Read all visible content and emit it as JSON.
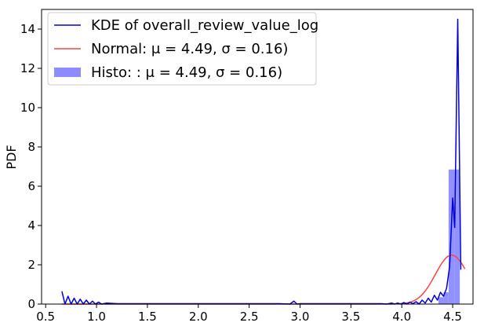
{
  "chart_data": {
    "type": "line",
    "title": "",
    "xlabel": "",
    "ylabel": "PDF",
    "xlim": [
      0.46,
      4.7
    ],
    "ylim": [
      0,
      15
    ],
    "x_ticks": [
      0.5,
      1.0,
      1.5,
      2.0,
      2.5,
      3.0,
      3.5,
      4.0,
      4.5
    ],
    "x_tick_labels": [
      "0.5",
      "1.0",
      "1.5",
      "2.0",
      "2.5",
      "3.0",
      "3.5",
      "4.0",
      "4.5"
    ],
    "y_ticks": [
      0,
      2,
      4,
      6,
      8,
      10,
      12,
      14
    ],
    "y_tick_labels": [
      "0",
      "2",
      "4",
      "6",
      "8",
      "10",
      "12",
      "14"
    ],
    "grid": false,
    "legend_position": "top-left",
    "legend": [
      {
        "key": "kde",
        "label": "KDE of overall_review_value_log",
        "color": "#0000dd",
        "kind": "line"
      },
      {
        "key": "normal",
        "label": "Normal: μ = 4.49, σ = 0.16)",
        "color": "#ff4040",
        "kind": "line"
      },
      {
        "key": "histo",
        "label": "Histo: : μ = 4.49, σ = 0.16)",
        "color": "#8c8cff",
        "kind": "patch"
      }
    ],
    "series": [
      {
        "name": "KDE of overall_review_value_log",
        "kind": "line",
        "color": "#0000dd",
        "x": [
          0.66,
          0.69,
          0.72,
          0.75,
          0.78,
          0.81,
          0.84,
          0.87,
          0.9,
          0.93,
          0.96,
          0.99,
          1.02,
          1.05,
          1.1,
          1.2,
          1.4,
          1.6,
          1.8,
          2.0,
          2.2,
          2.4,
          2.6,
          2.8,
          2.9,
          2.94,
          2.97,
          3.0,
          3.2,
          3.4,
          3.6,
          3.8,
          3.85,
          3.9,
          3.93,
          3.96,
          3.99,
          4.02,
          4.05,
          4.08,
          4.11,
          4.14,
          4.17,
          4.2,
          4.23,
          4.26,
          4.29,
          4.32,
          4.35,
          4.38,
          4.41,
          4.44,
          4.47,
          4.5,
          4.52,
          4.55,
          4.58
        ],
        "y": [
          0.65,
          0.0,
          0.4,
          0.0,
          0.3,
          0.0,
          0.25,
          0.0,
          0.2,
          0.0,
          0.15,
          0.0,
          0.1,
          0.0,
          0.05,
          0.02,
          0.02,
          0.02,
          0.02,
          0.02,
          0.02,
          0.02,
          0.02,
          0.02,
          0.0,
          0.15,
          0.0,
          0.02,
          0.02,
          0.02,
          0.02,
          0.02,
          0.0,
          0.05,
          0.0,
          0.05,
          0.0,
          0.08,
          0.0,
          0.1,
          0.02,
          0.12,
          0.0,
          0.2,
          0.05,
          0.3,
          0.1,
          0.45,
          0.2,
          0.6,
          0.4,
          0.8,
          1.9,
          5.4,
          3.9,
          14.5,
          1.75
        ]
      },
      {
        "name": "Normal: μ = 4.49, σ = 0.16)",
        "kind": "line",
        "color": "#ff4040",
        "mu": 4.49,
        "sigma": 0.16,
        "x_range": [
          0.66,
          4.62
        ]
      },
      {
        "name": "Histo: : μ = 4.49, σ = 0.16)",
        "kind": "bar",
        "color": "#8c8cff",
        "bins": [
          {
            "x0": 4.36,
            "x1": 4.41,
            "y": 0.35
          },
          {
            "x0": 4.41,
            "x1": 4.46,
            "y": 0.6
          },
          {
            "x0": 4.46,
            "x1": 4.52,
            "y": 6.85
          },
          {
            "x0": 4.52,
            "x1": 4.57,
            "y": 6.85
          }
        ]
      }
    ]
  }
}
